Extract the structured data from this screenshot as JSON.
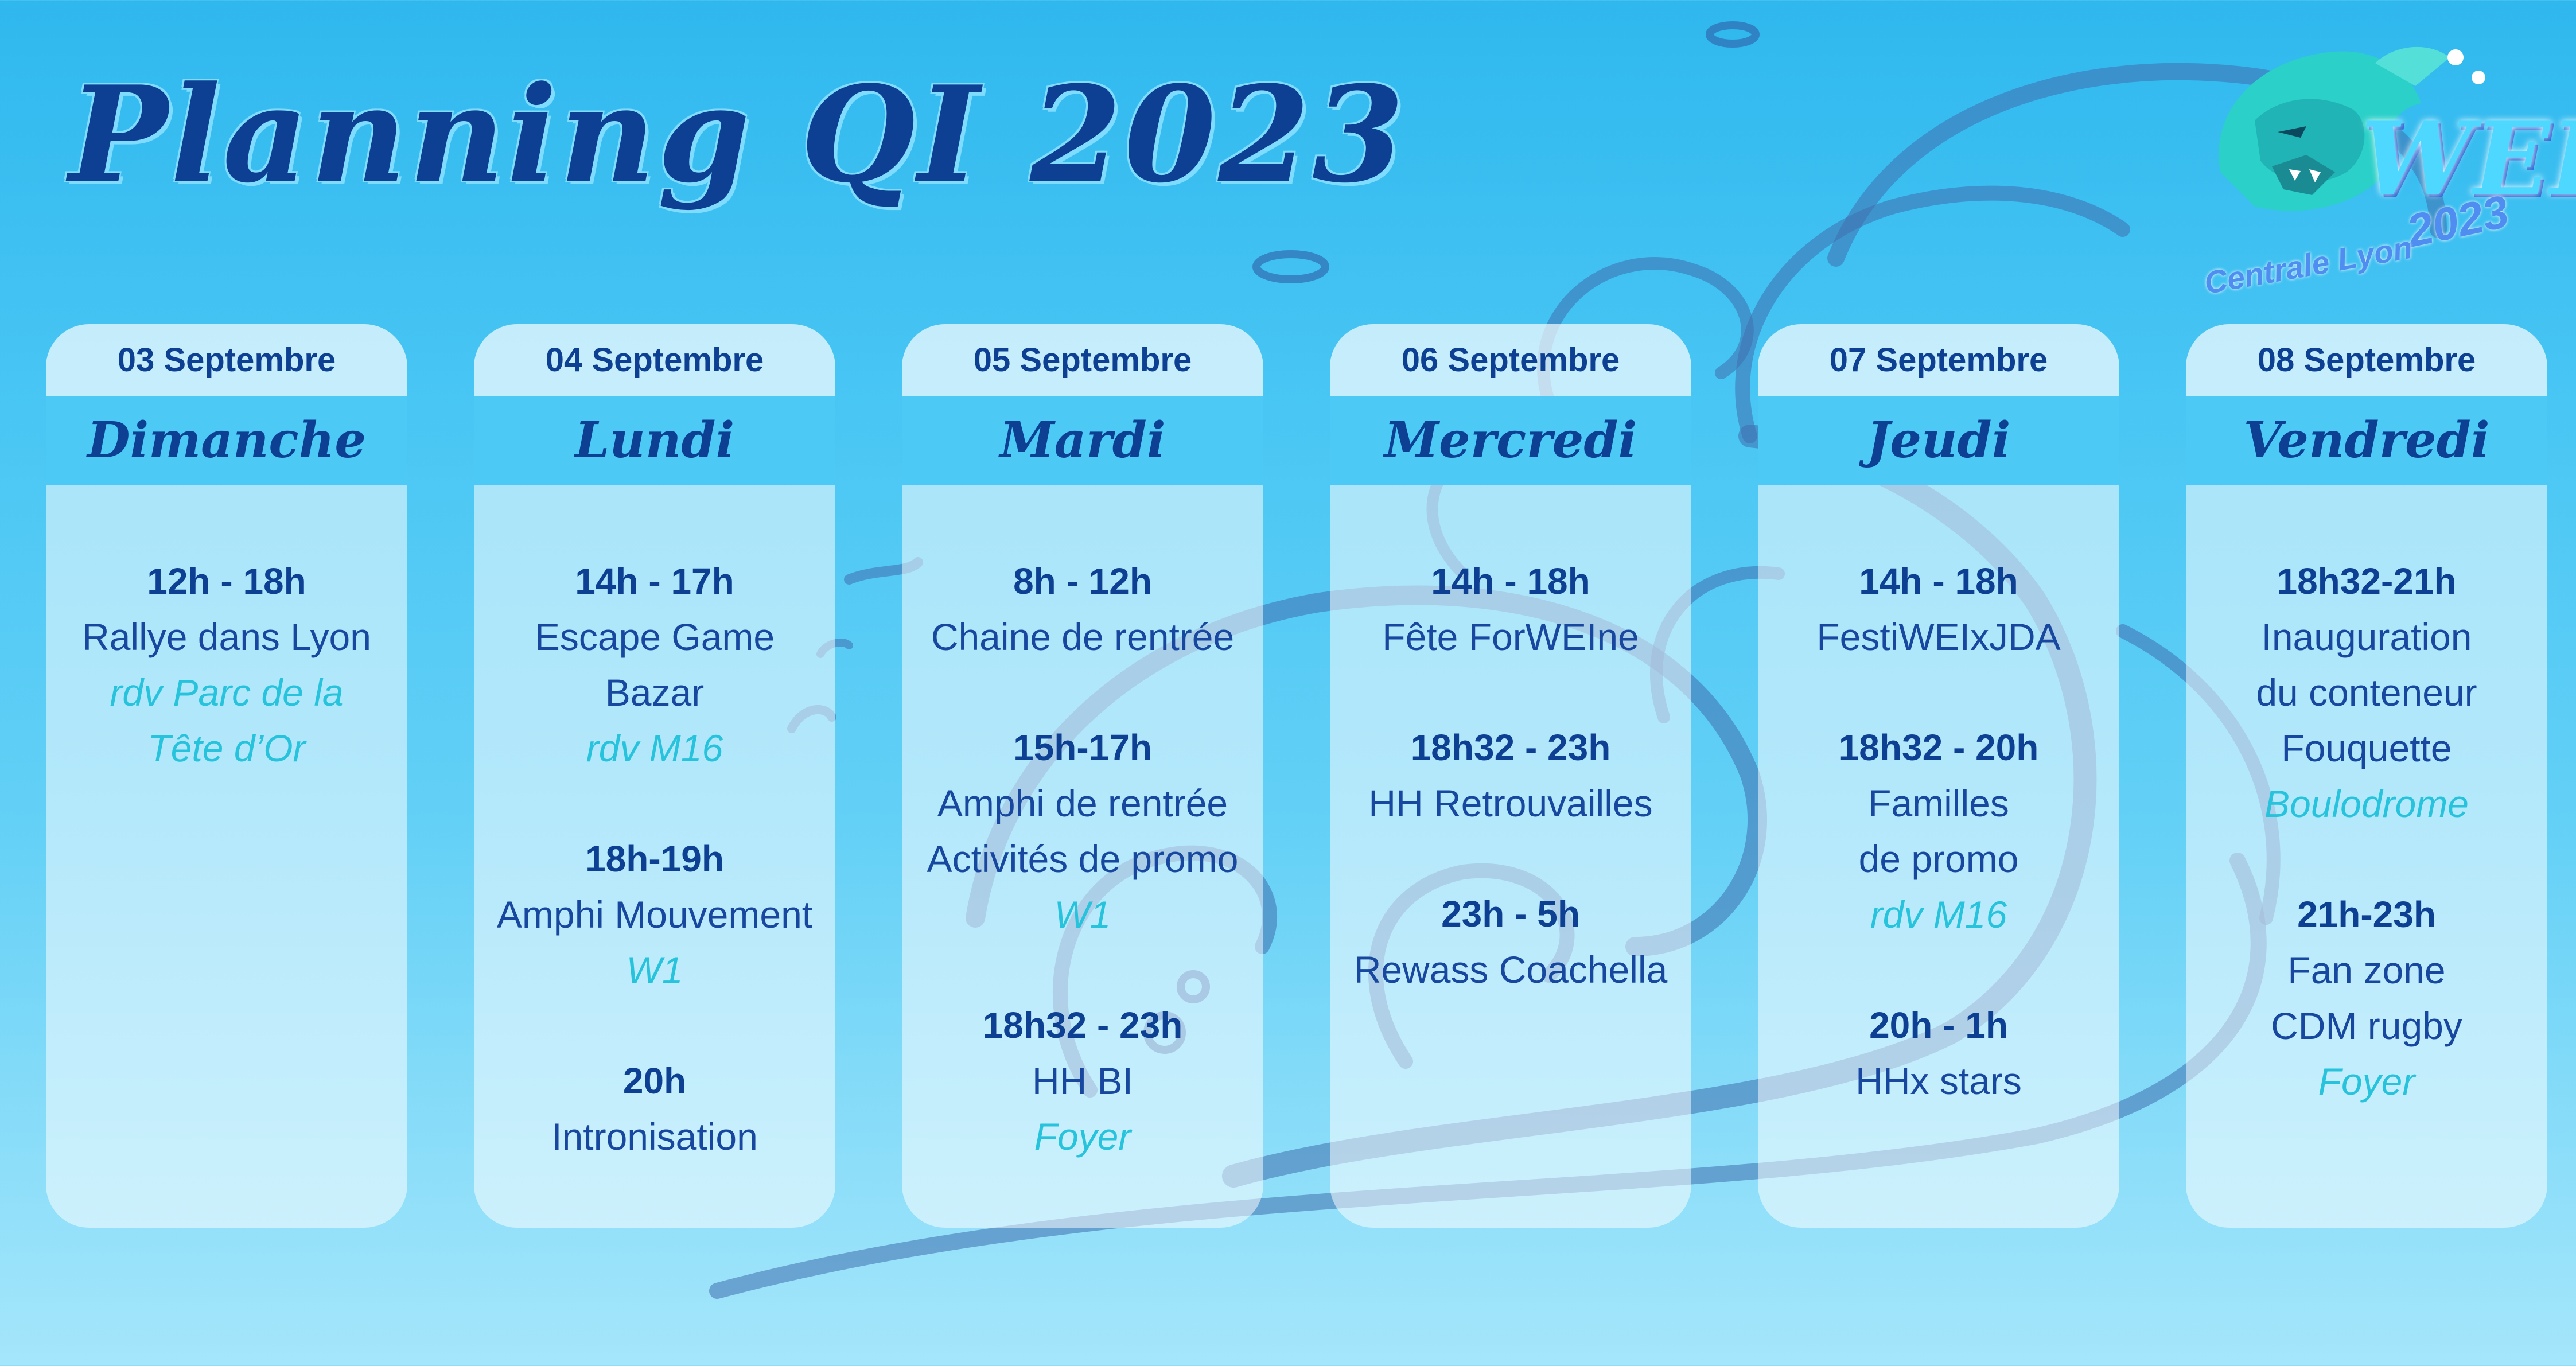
{
  "title": "Planning QI 2023",
  "logo": {
    "wei": "WEI",
    "year": "2023",
    "school": "Centrale Lyon"
  },
  "days": [
    {
      "date": "03 Septembre",
      "day": "Dimanche",
      "events": [
        {
          "time": "12h - 18h",
          "lines": [
            "Rallye dans Lyon"
          ],
          "location": [
            "rdv Parc de la",
            "Tête d’Or"
          ]
        }
      ]
    },
    {
      "date": "04 Septembre",
      "day": "Lundi",
      "events": [
        {
          "time": "14h - 17h",
          "lines": [
            "Escape Game",
            "Bazar"
          ],
          "location": [
            "rdv M16"
          ]
        },
        {
          "time": "18h-19h",
          "lines": [
            "Amphi Mouvement"
          ],
          "location": [
            "W1"
          ]
        },
        {
          "time": "20h",
          "lines": [
            "Intronisation"
          ],
          "location": []
        }
      ]
    },
    {
      "date": "05 Septembre",
      "day": "Mardi",
      "events": [
        {
          "time": "8h - 12h",
          "lines": [
            "Chaine de rentrée"
          ],
          "location": []
        },
        {
          "time": "15h-17h",
          "lines": [
            "Amphi de rentrée",
            "Activités de promo"
          ],
          "location": [
            "W1"
          ]
        },
        {
          "time": "18h32 - 23h",
          "lines": [
            "HH BI"
          ],
          "location": [
            "Foyer"
          ]
        }
      ]
    },
    {
      "date": "06 Septembre",
      "day": "Mercredi",
      "events": [
        {
          "time": "14h - 18h",
          "lines": [
            "Fête ForWEIne"
          ],
          "location": []
        },
        {
          "time": "18h32 - 23h",
          "lines": [
            "HH Retrouvailles"
          ],
          "location": []
        },
        {
          "time": "23h - 5h",
          "lines": [
            "Rewass Coachella"
          ],
          "location": []
        }
      ]
    },
    {
      "date": "07 Septembre",
      "day": "Jeudi",
      "events": [
        {
          "time": "14h - 18h",
          "lines": [
            "FestiWEIxJDA"
          ],
          "location": []
        },
        {
          "time": "18h32 - 20h",
          "lines": [
            "Familles",
            "de promo"
          ],
          "location": [
            "rdv M16"
          ]
        },
        {
          "time": "20h - 1h",
          "lines": [
            "HHx stars"
          ],
          "location": []
        }
      ]
    },
    {
      "date": "08 Septembre",
      "day": "Vendredi",
      "events": [
        {
          "time": "18h32-21h",
          "lines": [
            "Inauguration",
            "du conteneur",
            "Fouquette"
          ],
          "location": [
            "Boulodrome"
          ]
        },
        {
          "time": "21h-23h",
          "lines": [
            "Fan zone",
            "CDM rugby"
          ],
          "location": [
            "Foyer"
          ]
        }
      ]
    }
  ]
}
